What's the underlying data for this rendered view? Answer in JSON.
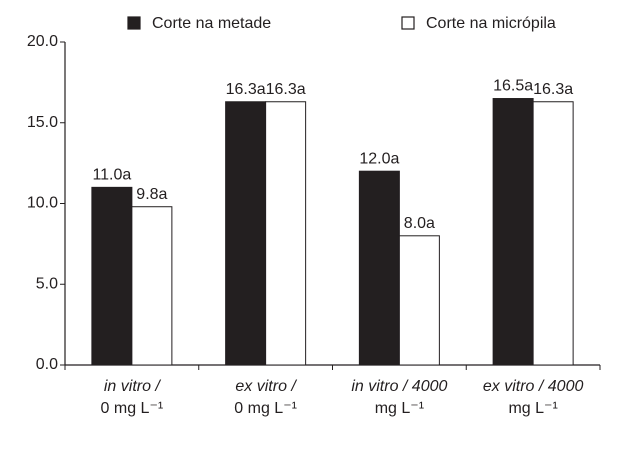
{
  "chart_data": {
    "type": "bar",
    "categories": [
      [
        "in vitro /",
        "0 mg L⁻¹"
      ],
      [
        "ex vitro /",
        "0 mg  L⁻¹"
      ],
      [
        "in vitro / 4000",
        "mg L⁻¹"
      ],
      [
        "ex vitro / 4000",
        "mg L⁻¹"
      ]
    ],
    "series": [
      {
        "name": "Corte na metade",
        "color": "#231f20",
        "values": [
          11.0,
          16.3,
          12.0,
          16.5
        ],
        "value_labels": [
          "11.0a",
          "16.3a",
          "12.0a",
          "16.5a"
        ]
      },
      {
        "name": "Corte na micrópila",
        "color": "#ffffff",
        "values": [
          9.8,
          16.3,
          8.0,
          16.3
        ],
        "value_labels": [
          "9.8a",
          "16.3a",
          "8.0a",
          "16.3a"
        ]
      }
    ],
    "ylim": [
      0,
      20
    ],
    "yticks": [
      {
        "value": 0,
        "label": "0.0"
      },
      {
        "value": 5,
        "label": "5.0"
      },
      {
        "value": 10,
        "label": "10.0"
      },
      {
        "value": 15,
        "label": "15.0"
      },
      {
        "value": 20,
        "label": "20.0"
      }
    ],
    "legend": "top"
  }
}
